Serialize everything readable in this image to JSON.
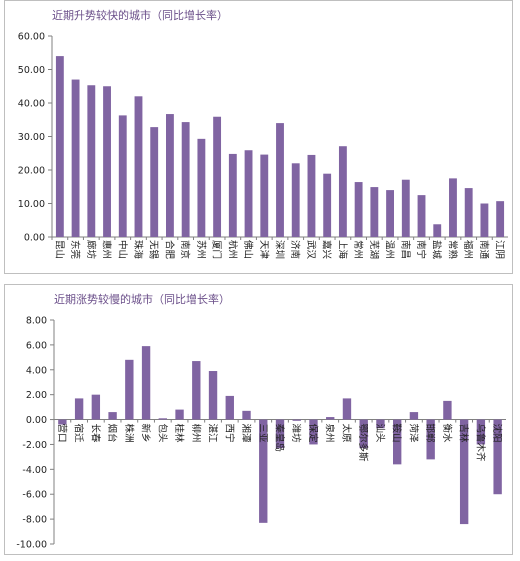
{
  "chart_data": [
    {
      "type": "bar",
      "title": "近期升势较快的城市（同比增长率）",
      "categories": [
        "昆山",
        "东莞",
        "廊坊",
        "惠州",
        "中山",
        "珠海",
        "无锡",
        "合肥",
        "南京",
        "苏州",
        "厦门",
        "杭州",
        "佛山",
        "天津",
        "深圳",
        "济南",
        "武汉",
        "嘉兴",
        "上海",
        "常州",
        "芜湖",
        "温州",
        "南昌",
        "南宁",
        "盐城",
        "常熟",
        "福州",
        "南通",
        "江阴"
      ],
      "values": [
        54.0,
        47.0,
        45.3,
        45.0,
        36.3,
        42.0,
        32.8,
        36.7,
        34.3,
        29.3,
        35.9,
        24.8,
        25.9,
        24.6,
        34.0,
        22.0,
        24.5,
        18.9,
        27.1,
        16.4,
        14.9,
        14.0,
        17.1,
        12.5,
        3.8,
        17.5,
        14.6,
        10.0,
        10.7
      ],
      "yticks": [
        "0.00",
        "10.00",
        "20.00",
        "30.00",
        "40.00",
        "50.00",
        "60.00"
      ],
      "ylim": [
        0,
        60
      ],
      "color": "#8064a2",
      "grid": false
    },
    {
      "type": "bar",
      "title": "近期涨势较慢的城市（同比增长率）",
      "categories": [
        "营口",
        "宿迁",
        "长春",
        "烟台",
        "株洲",
        "新乡",
        "包头",
        "桂林",
        "柳州",
        "湛江",
        "西宁",
        "湘潭",
        "三亚",
        "秦皇岛",
        "潍坊",
        "保定",
        "泉州",
        "太原",
        "鄂尔多斯",
        "汕头",
        "鞍山",
        "菏泽",
        "邯郸",
        "衡水",
        "吉林",
        "乌鲁木齐",
        "沈阳"
      ],
      "values": [
        -0.4,
        1.7,
        2.0,
        0.6,
        4.8,
        5.9,
        0.1,
        0.8,
        4.7,
        3.9,
        1.9,
        0.7,
        -8.3,
        -2.3,
        -0.1,
        -2.0,
        0.2,
        1.7,
        -2.3,
        -0.7,
        -3.6,
        0.6,
        -3.2,
        1.5,
        -8.4,
        -2.0,
        -6.0
      ],
      "yticks": [
        "-10.00",
        "-8.00",
        "-6.00",
        "-4.00",
        "-2.00",
        "0.00",
        "2.00",
        "4.00",
        "6.00",
        "8.00"
      ],
      "ylim": [
        -10,
        8
      ],
      "color": "#8064a2",
      "grid": false
    }
  ]
}
